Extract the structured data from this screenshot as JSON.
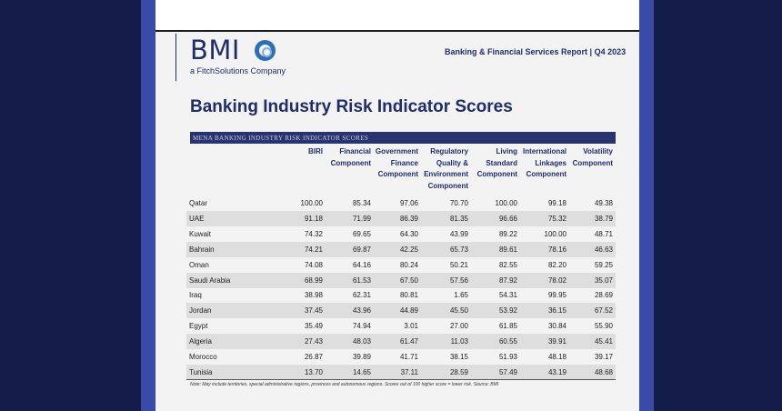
{
  "logo": {
    "text": "BMI",
    "subtitle": "a FitchSolutions Company"
  },
  "report_title": "Banking & Financial Services Report | Q4 2023",
  "page_title": "Banking Industry Risk Indicator Scores",
  "table": {
    "caption": "MENA BANKING INDUSTRY RISK INDICATOR SCORES",
    "headers": [
      [
        "BIRI"
      ],
      [
        "Financial",
        "Component"
      ],
      [
        "Government",
        "Finance",
        "Component"
      ],
      [
        "Regulatory",
        "Quality &",
        "Environment",
        "Component"
      ],
      [
        "Living",
        "Standard",
        "Component"
      ],
      [
        "International",
        "Linkages",
        "Component"
      ],
      [
        "Volatility",
        "Component"
      ]
    ],
    "rows": [
      {
        "country": "Qatar",
        "values": [
          "100.00",
          "85.34",
          "97.06",
          "70.70",
          "100.00",
          "99.18",
          "49.38"
        ]
      },
      {
        "country": "UAE",
        "values": [
          "91.18",
          "71.99",
          "86.39",
          "81.35",
          "96.66",
          "75.32",
          "38.79"
        ]
      },
      {
        "country": "Kuwait",
        "values": [
          "74.32",
          "69.65",
          "64.30",
          "43.99",
          "89.22",
          "100.00",
          "48.71"
        ]
      },
      {
        "country": "Bahrain",
        "values": [
          "74.21",
          "69.87",
          "42.25",
          "65.73",
          "89.61",
          "78.16",
          "46.63"
        ]
      },
      {
        "country": "Oman",
        "values": [
          "74.08",
          "64.16",
          "80.24",
          "50.21",
          "82.55",
          "82.20",
          "59.25"
        ]
      },
      {
        "country": "Saudi Arabia",
        "values": [
          "68.99",
          "61.53",
          "67.50",
          "57.56",
          "87.92",
          "78.02",
          "35.07"
        ]
      },
      {
        "country": "Iraq",
        "values": [
          "38.98",
          "62.31",
          "80.81",
          "1.65",
          "54.31",
          "99.95",
          "28.69"
        ]
      },
      {
        "country": "Jordan",
        "values": [
          "37.45",
          "43.96",
          "44.89",
          "45.50",
          "53.92",
          "36.15",
          "67.52"
        ]
      },
      {
        "country": "Egypt",
        "values": [
          "35.49",
          "74.94",
          "3.01",
          "27.00",
          "61.85",
          "30.84",
          "55.90"
        ]
      },
      {
        "country": "Algeria",
        "values": [
          "27.43",
          "48.03",
          "61.47",
          "11.03",
          "60.55",
          "39.91",
          "45.41"
        ]
      },
      {
        "country": "Morocco",
        "values": [
          "26.87",
          "39.89",
          "41.71",
          "38.15",
          "51.93",
          "48.18",
          "39.17"
        ]
      },
      {
        "country": "Tunisia",
        "values": [
          "13.70",
          "14.65",
          "37.11",
          "28.59",
          "57.49",
          "43.19",
          "48.68"
        ]
      }
    ],
    "footnote": "Note: May include territories, special administrative regions, provinces and autonomous regions. Scores out of 100 higher score = lower risk. Source: BMI"
  },
  "colors": {
    "brand_navy": "#1f2d6b",
    "caption_bar": "#27346e",
    "background": "#141c4a",
    "side_band": "#3a4aa8"
  }
}
